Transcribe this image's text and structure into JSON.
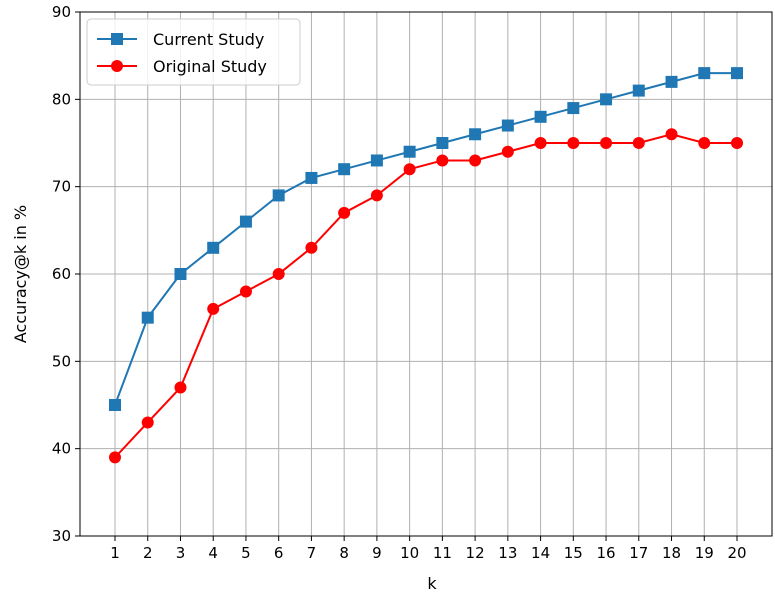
{
  "chart_data": {
    "type": "line",
    "xlabel": "k",
    "ylabel": "Accuracy@k in %",
    "x": [
      1,
      2,
      3,
      4,
      5,
      6,
      7,
      8,
      9,
      10,
      11,
      12,
      13,
      14,
      15,
      16,
      17,
      18,
      19,
      20
    ],
    "ylim": [
      30,
      90
    ],
    "yticks": [
      30,
      40,
      50,
      60,
      70,
      80,
      90
    ],
    "grid": true,
    "legend_position": "top-left",
    "series": [
      {
        "name": "Current Study",
        "color": "#1f77b4",
        "marker": "square",
        "values": [
          45,
          55,
          60,
          63,
          66,
          69,
          71,
          72,
          73,
          74,
          75,
          76,
          77,
          78,
          79,
          80,
          81,
          82,
          83,
          83
        ]
      },
      {
        "name": "Original Study",
        "color": "#ff0000",
        "marker": "circle",
        "values": [
          39,
          43,
          47,
          56,
          58,
          60,
          63,
          67,
          69,
          72,
          73,
          73,
          74,
          75,
          75,
          75,
          75,
          76,
          75,
          75
        ]
      }
    ]
  }
}
